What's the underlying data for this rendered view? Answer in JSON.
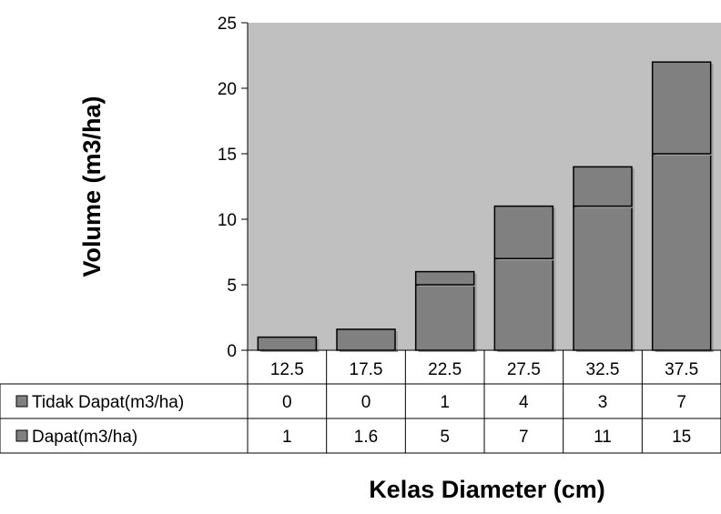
{
  "chart_data": {
    "type": "bar",
    "stacked": true,
    "categories": [
      "12.5",
      "17.5",
      "22.5",
      "27.5",
      "32.5",
      "37.5"
    ],
    "series": [
      {
        "name": "Dapat(m3/ha)",
        "values": [
          1,
          1.6,
          5,
          7,
          11,
          15
        ]
      },
      {
        "name": "Tidak Dapat(m3/ha)",
        "values": [
          0,
          0,
          1,
          4,
          3,
          7
        ]
      }
    ],
    "table_rows": [
      {
        "label": "Tidak Dapat(m3/ha)",
        "values": [
          "0",
          "0",
          "1",
          "4",
          "3",
          "7"
        ]
      },
      {
        "label": "Dapat(m3/ha)",
        "values": [
          "1",
          "1.6",
          "5",
          "7",
          "11",
          "15"
        ]
      }
    ],
    "yticks": [
      "0",
      "5",
      "10",
      "15",
      "20",
      "25"
    ],
    "ylim": [
      0,
      25
    ],
    "xlabel": "Kelas Diameter (cm)",
    "ylabel": "Volume (m3/ha)",
    "grid": false,
    "colors": {
      "plot_background": "#c0c0c0",
      "bar_fill": "#808080",
      "bar_outline": "#000000"
    }
  }
}
